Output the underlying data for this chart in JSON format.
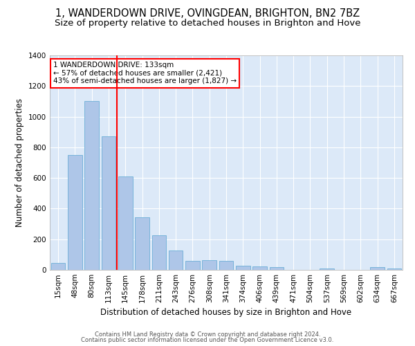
{
  "title": "1, WANDERDOWN DRIVE, OVINGDEAN, BRIGHTON, BN2 7BZ",
  "subtitle": "Size of property relative to detached houses in Brighton and Hove",
  "xlabel": "Distribution of detached houses by size in Brighton and Hove",
  "ylabel": "Number of detached properties",
  "categories": [
    "15sqm",
    "48sqm",
    "80sqm",
    "113sqm",
    "145sqm",
    "178sqm",
    "211sqm",
    "243sqm",
    "276sqm",
    "308sqm",
    "341sqm",
    "374sqm",
    "406sqm",
    "439sqm",
    "471sqm",
    "504sqm",
    "537sqm",
    "569sqm",
    "602sqm",
    "634sqm",
    "667sqm"
  ],
  "values": [
    45,
    750,
    1100,
    870,
    610,
    345,
    225,
    125,
    58,
    62,
    60,
    28,
    22,
    18,
    0,
    0,
    10,
    0,
    0,
    18,
    10
  ],
  "bar_color": "#aec6e8",
  "bar_edge_color": "#6baed6",
  "vline_color": "red",
  "annotation_text": "1 WANDERDOWN DRIVE: 133sqm\n← 57% of detached houses are smaller (2,421)\n43% of semi-detached houses are larger (1,827) →",
  "annotation_box_color": "white",
  "annotation_box_edge": "red",
  "ylim": [
    0,
    1400
  ],
  "yticks": [
    0,
    200,
    400,
    600,
    800,
    1000,
    1200,
    1400
  ],
  "background_color": "#dce9f8",
  "grid_color": "white",
  "footer1": "Contains HM Land Registry data © Crown copyright and database right 2024.",
  "footer2": "Contains public sector information licensed under the Open Government Licence v3.0.",
  "title_fontsize": 10.5,
  "subtitle_fontsize": 9.5,
  "axis_label_fontsize": 8.5,
  "tick_fontsize": 7.5,
  "footer_fontsize": 6.0,
  "annotation_fontsize": 7.5
}
